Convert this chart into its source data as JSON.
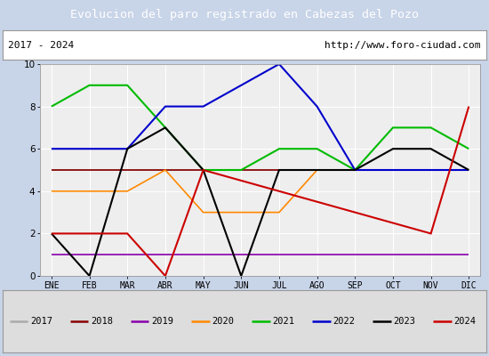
{
  "title": "Evolucion del paro registrado en Cabezas del Pozo",
  "subtitle_left": "2017 - 2024",
  "subtitle_right": "http://www.foro-ciudad.com",
  "months": [
    "ENE",
    "FEB",
    "MAR",
    "ABR",
    "MAY",
    "JUN",
    "JUL",
    "AGO",
    "SEP",
    "OCT",
    "NOV",
    "DIC"
  ],
  "ylim": [
    0,
    10
  ],
  "yticks": [
    0,
    2,
    4,
    6,
    8,
    10
  ],
  "series": {
    "2017": {
      "data": [
        5,
        5,
        5,
        5,
        5,
        5,
        5,
        5,
        5,
        5,
        5,
        5
      ],
      "color": "#aaaaaa",
      "lw": 1.2
    },
    "2018": {
      "data": [
        5,
        5,
        5,
        5,
        5,
        5,
        5,
        5,
        5,
        5,
        5,
        5
      ],
      "color": "#880000",
      "lw": 1.2
    },
    "2019": {
      "data": [
        1,
        1,
        1,
        1,
        1,
        1,
        1,
        1,
        1,
        1,
        1,
        1
      ],
      "color": "#8800aa",
      "lw": 1.2
    },
    "2020": {
      "data": [
        4,
        4,
        4,
        5,
        3,
        3,
        3,
        5,
        5,
        5,
        5,
        5
      ],
      "color": "#ff8800",
      "lw": 1.2
    },
    "2021": {
      "data": [
        8,
        9,
        9,
        7,
        5,
        5,
        6,
        6,
        5,
        7,
        7,
        6
      ],
      "color": "#00bb00",
      "lw": 1.5
    },
    "2022": {
      "data": [
        6,
        6,
        6,
        8,
        8,
        9,
        10,
        8,
        5,
        5,
        5,
        5
      ],
      "color": "#0000cc",
      "lw": 1.5
    },
    "2023": {
      "data": [
        2,
        0,
        6,
        7,
        5,
        0,
        5,
        5,
        5,
        6,
        6,
        5
      ],
      "color": "#000000",
      "lw": 1.5
    },
    "2024": {
      "data": [
        2,
        2,
        2,
        0,
        5,
        null,
        null,
        null,
        null,
        null,
        2,
        8
      ],
      "color": "#cc0000",
      "lw": 1.5
    }
  },
  "title_bg": "#4d7fbf",
  "title_fg": "#ffffff",
  "sub_bg": "#ffffff",
  "plot_bg": "#eeeeee",
  "grid_color": "#ffffff",
  "legend_bg": "#dddddd",
  "border_color": "#999999",
  "fig_bg": "#c8d4e8"
}
